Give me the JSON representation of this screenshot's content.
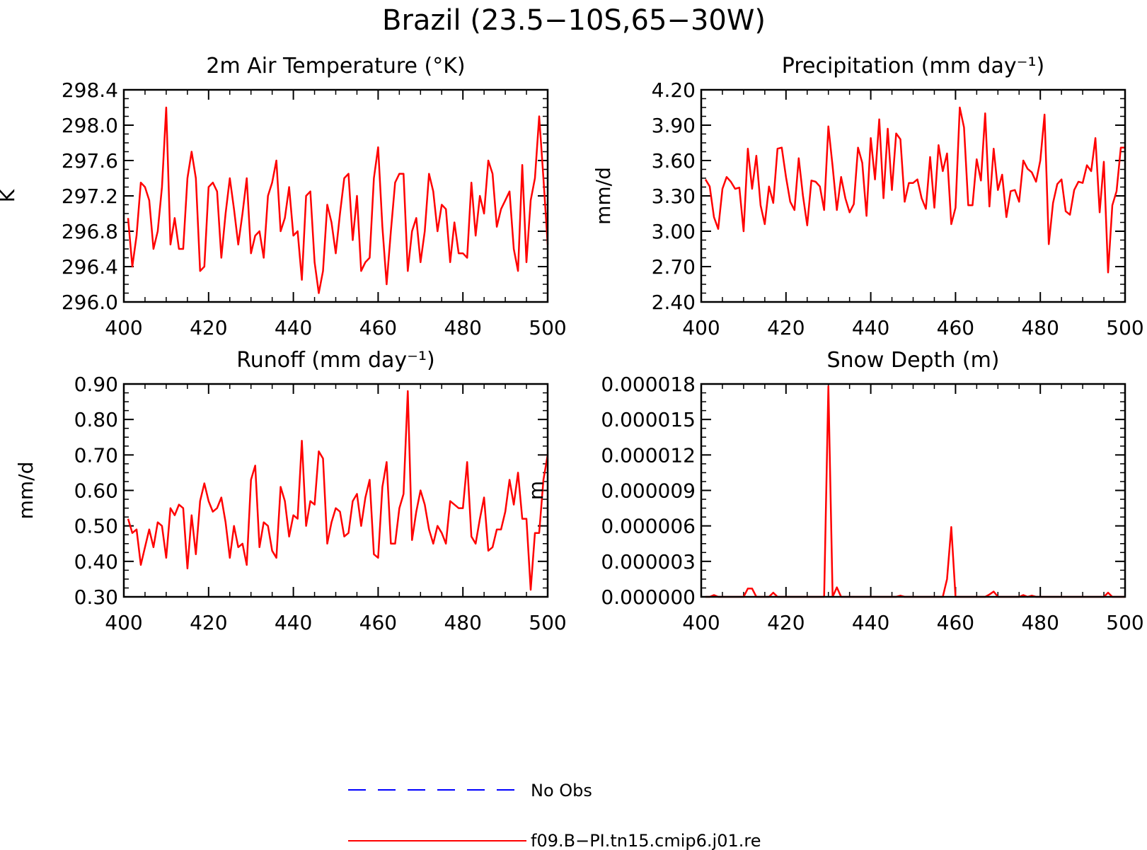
{
  "figure": {
    "title": "Brazil (23.5−10S,65−30W)"
  },
  "colors": {
    "model_line": "#ff0000",
    "obs_line": "#0000ff",
    "axis": "#000000"
  },
  "legend": {
    "items": [
      {
        "label": "No Obs",
        "style": "dashed",
        "color": "#0000ff"
      },
      {
        "label": "f09.B−PI.tn15.cmip6.j01.re",
        "style": "solid",
        "color": "#ff0000"
      }
    ]
  },
  "chart_data": [
    {
      "type": "line",
      "title": "2m Air Temperature (°K)",
      "ylabel": "K",
      "xlabel": "",
      "xlim": [
        400,
        500
      ],
      "ylim": [
        296.0,
        298.4
      ],
      "xticks": [
        "400",
        "420",
        "440",
        "460",
        "480",
        "500"
      ],
      "yticks": [
        "296.0",
        "296.4",
        "296.8",
        "297.2",
        "297.6",
        "298.0",
        "298.4"
      ],
      "x": [
        401,
        402,
        403,
        404,
        405,
        406,
        407,
        408,
        409,
        410,
        411,
        412,
        413,
        414,
        415,
        416,
        417,
        418,
        419,
        420,
        421,
        422,
        423,
        424,
        425,
        426,
        427,
        428,
        429,
        430,
        431,
        432,
        433,
        434,
        435,
        436,
        437,
        438,
        439,
        440,
        441,
        442,
        443,
        444,
        445,
        446,
        447,
        448,
        449,
        450,
        451,
        452,
        453,
        454,
        455,
        456,
        457,
        458,
        459,
        460,
        461,
        462,
        463,
        464,
        465,
        466,
        467,
        468,
        469,
        470,
        471,
        472,
        473,
        474,
        475,
        476,
        477,
        478,
        479,
        480,
        481,
        482,
        483,
        484,
        485,
        486,
        487,
        488,
        489,
        490,
        491,
        492,
        493,
        494,
        495,
        496,
        497,
        498,
        499,
        500
      ],
      "series": [
        {
          "values": [
            296.95,
            296.4,
            296.75,
            297.35,
            297.3,
            297.15,
            296.6,
            296.8,
            297.3,
            298.2,
            296.65,
            296.95,
            296.6,
            296.6,
            297.4,
            297.7,
            297.4,
            296.35,
            296.4,
            297.3,
            297.35,
            297.25,
            296.5,
            297.0,
            297.4,
            297.05,
            296.65,
            297.0,
            297.4,
            296.55,
            296.75,
            296.8,
            296.5,
            297.2,
            297.35,
            297.6,
            296.8,
            296.95,
            297.3,
            296.75,
            296.8,
            296.25,
            297.2,
            297.25,
            296.45,
            296.1,
            296.35,
            297.1,
            296.9,
            296.55,
            297.0,
            297.4,
            297.45,
            296.7,
            297.2,
            296.35,
            296.45,
            296.5,
            297.4,
            297.75,
            296.85,
            296.2,
            296.8,
            297.35,
            297.45,
            297.45,
            296.35,
            296.8,
            296.95,
            296.45,
            296.8,
            297.45,
            297.25,
            296.8,
            297.1,
            297.05,
            296.45,
            296.9,
            296.55,
            296.55,
            296.5,
            297.35,
            296.75,
            297.2,
            297.0,
            297.6,
            297.45,
            296.85,
            297.05,
            297.15,
            297.25,
            296.6,
            296.35,
            297.55,
            296.45,
            297.15,
            297.4,
            298.1,
            297.4,
            296.65
          ]
        }
      ]
    },
    {
      "type": "line",
      "title": "Precipitation (mm day⁻¹)",
      "ylabel": "mm/d",
      "xlabel": "",
      "xlim": [
        400,
        500
      ],
      "ylim": [
        2.4,
        4.2
      ],
      "xticks": [
        "400",
        "420",
        "440",
        "460",
        "480",
        "500"
      ],
      "yticks": [
        "2.40",
        "2.70",
        "3.00",
        "3.30",
        "3.60",
        "3.90",
        "4.20"
      ],
      "x": [
        401,
        402,
        403,
        404,
        405,
        406,
        407,
        408,
        409,
        410,
        411,
        412,
        413,
        414,
        415,
        416,
        417,
        418,
        419,
        420,
        421,
        422,
        423,
        424,
        425,
        426,
        427,
        428,
        429,
        430,
        431,
        432,
        433,
        434,
        435,
        436,
        437,
        438,
        439,
        440,
        441,
        442,
        443,
        444,
        445,
        446,
        447,
        448,
        449,
        450,
        451,
        452,
        453,
        454,
        455,
        456,
        457,
        458,
        459,
        460,
        461,
        462,
        463,
        464,
        465,
        466,
        467,
        468,
        469,
        470,
        471,
        472,
        473,
        474,
        475,
        476,
        477,
        478,
        479,
        480,
        481,
        482,
        483,
        484,
        485,
        486,
        487,
        488,
        489,
        490,
        491,
        492,
        493,
        494,
        495,
        496,
        497,
        498,
        499,
        500
      ],
      "series": [
        {
          "values": [
            3.44,
            3.38,
            3.12,
            3.02,
            3.36,
            3.46,
            3.42,
            3.36,
            3.37,
            3.0,
            3.7,
            3.36,
            3.64,
            3.22,
            3.06,
            3.38,
            3.24,
            3.7,
            3.71,
            3.46,
            3.25,
            3.18,
            3.62,
            3.3,
            3.05,
            3.43,
            3.42,
            3.38,
            3.18,
            3.89,
            3.55,
            3.18,
            3.46,
            3.28,
            3.16,
            3.23,
            3.71,
            3.58,
            3.13,
            3.79,
            3.44,
            3.95,
            3.28,
            3.87,
            3.35,
            3.83,
            3.78,
            3.25,
            3.41,
            3.41,
            3.44,
            3.28,
            3.19,
            3.63,
            3.2,
            3.73,
            3.51,
            3.66,
            3.06,
            3.2,
            4.05,
            3.88,
            3.22,
            3.22,
            3.61,
            3.43,
            4.0,
            3.21,
            3.7,
            3.35,
            3.48,
            3.12,
            3.34,
            3.35,
            3.25,
            3.6,
            3.53,
            3.5,
            3.42,
            3.6,
            3.99,
            2.89,
            3.24,
            3.4,
            3.44,
            3.17,
            3.14,
            3.35,
            3.42,
            3.41,
            3.56,
            3.51,
            3.79,
            3.16,
            3.59,
            2.65,
            3.22,
            3.34,
            3.71,
            3.71
          ]
        }
      ]
    },
    {
      "type": "line",
      "title": "Runoff (mm day⁻¹)",
      "ylabel": "mm/d",
      "xlabel": "",
      "xlim": [
        400,
        500
      ],
      "ylim": [
        0.3,
        0.9
      ],
      "xticks": [
        "400",
        "420",
        "440",
        "460",
        "480",
        "500"
      ],
      "yticks": [
        "0.30",
        "0.40",
        "0.50",
        "0.60",
        "0.70",
        "0.80",
        "0.90"
      ],
      "x": [
        401,
        402,
        403,
        404,
        405,
        406,
        407,
        408,
        409,
        410,
        411,
        412,
        413,
        414,
        415,
        416,
        417,
        418,
        419,
        420,
        421,
        422,
        423,
        424,
        425,
        426,
        427,
        428,
        429,
        430,
        431,
        432,
        433,
        434,
        435,
        436,
        437,
        438,
        439,
        440,
        441,
        442,
        443,
        444,
        445,
        446,
        447,
        448,
        449,
        450,
        451,
        452,
        453,
        454,
        455,
        456,
        457,
        458,
        459,
        460,
        461,
        462,
        463,
        464,
        465,
        466,
        467,
        468,
        469,
        470,
        471,
        472,
        473,
        474,
        475,
        476,
        477,
        478,
        479,
        480,
        481,
        482,
        483,
        484,
        485,
        486,
        487,
        488,
        489,
        490,
        491,
        492,
        493,
        494,
        495,
        496,
        497,
        498,
        499,
        500
      ],
      "series": [
        {
          "values": [
            0.52,
            0.48,
            0.49,
            0.39,
            0.44,
            0.49,
            0.44,
            0.51,
            0.5,
            0.41,
            0.55,
            0.53,
            0.56,
            0.55,
            0.38,
            0.53,
            0.42,
            0.57,
            0.62,
            0.57,
            0.54,
            0.55,
            0.58,
            0.51,
            0.41,
            0.5,
            0.44,
            0.45,
            0.39,
            0.63,
            0.67,
            0.44,
            0.51,
            0.5,
            0.43,
            0.41,
            0.61,
            0.57,
            0.47,
            0.53,
            0.52,
            0.74,
            0.5,
            0.57,
            0.56,
            0.71,
            0.69,
            0.45,
            0.51,
            0.55,
            0.54,
            0.47,
            0.48,
            0.57,
            0.59,
            0.5,
            0.58,
            0.63,
            0.42,
            0.41,
            0.61,
            0.68,
            0.45,
            0.45,
            0.55,
            0.59,
            0.88,
            0.46,
            0.54,
            0.6,
            0.56,
            0.49,
            0.45,
            0.5,
            0.48,
            0.45,
            0.57,
            0.56,
            0.55,
            0.55,
            0.68,
            0.47,
            0.45,
            0.52,
            0.58,
            0.43,
            0.44,
            0.49,
            0.49,
            0.54,
            0.63,
            0.56,
            0.65,
            0.52,
            0.52,
            0.32,
            0.48,
            0.48,
            0.63,
            0.7
          ]
        }
      ]
    },
    {
      "type": "line",
      "title": "Snow Depth (m)",
      "ylabel": "m",
      "xlabel": "",
      "xlim": [
        400,
        500
      ],
      "ylim": [
        0.0,
        1.8e-05
      ],
      "xticks": [
        "400",
        "420",
        "440",
        "460",
        "480",
        "500"
      ],
      "yticks": [
        "0.000000",
        "0.000003",
        "0.000006",
        "0.000009",
        "0.000012",
        "0.000015",
        "0.000018"
      ],
      "x": [
        401,
        402,
        403,
        404,
        405,
        406,
        407,
        408,
        409,
        410,
        411,
        412,
        413,
        414,
        415,
        416,
        417,
        418,
        419,
        420,
        421,
        422,
        423,
        424,
        425,
        426,
        427,
        428,
        429,
        430,
        431,
        432,
        433,
        434,
        435,
        436,
        437,
        438,
        439,
        440,
        441,
        442,
        443,
        444,
        445,
        446,
        447,
        448,
        449,
        450,
        451,
        452,
        453,
        454,
        455,
        456,
        457,
        458,
        459,
        460,
        461,
        462,
        463,
        464,
        465,
        466,
        467,
        468,
        469,
        470,
        471,
        472,
        473,
        474,
        475,
        476,
        477,
        478,
        479,
        480,
        481,
        482,
        483,
        484,
        485,
        486,
        487,
        488,
        489,
        490,
        491,
        492,
        493,
        494,
        495,
        496,
        497,
        498,
        499,
        500
      ],
      "series": [
        {
          "values": [
            0.0,
            0.0,
            1.5e-07,
            0.0,
            0.0,
            0.0,
            0.0,
            0.0,
            0.0,
            0.0,
            7e-07,
            7e-07,
            0.0,
            0.0,
            0.0,
            0.0,
            3.5e-07,
            0.0,
            0.0,
            0.0,
            0.0,
            0.0,
            0.0,
            0.0,
            0.0,
            0.0,
            0.0,
            0.0,
            0.0,
            1.78e-05,
            0.0,
            8e-07,
            0.0,
            0.0,
            0.0,
            0.0,
            0.0,
            0.0,
            0.0,
            0.0,
            0.0,
            0.0,
            0.0,
            0.0,
            0.0,
            0.0,
            1e-07,
            0.0,
            0.0,
            0.0,
            0.0,
            0.0,
            0.0,
            0.0,
            0.0,
            0.0,
            0.0,
            1.5e-06,
            5.9e-06,
            0.0,
            0.0,
            0.0,
            0.0,
            0.0,
            0.0,
            0.0,
            0.0,
            2e-07,
            4.5e-07,
            0.0,
            0.0,
            0.0,
            0.0,
            0.0,
            0.0,
            1.5e-07,
            0.0,
            1e-07,
            0.0,
            0.0,
            0.0,
            0.0,
            0.0,
            0.0,
            0.0,
            0.0,
            0.0,
            0.0,
            0.0,
            0.0,
            0.0,
            0.0,
            0.0,
            0.0,
            0.0,
            3.5e-07,
            0.0,
            0.0,
            0.0,
            0.0
          ]
        }
      ]
    }
  ]
}
